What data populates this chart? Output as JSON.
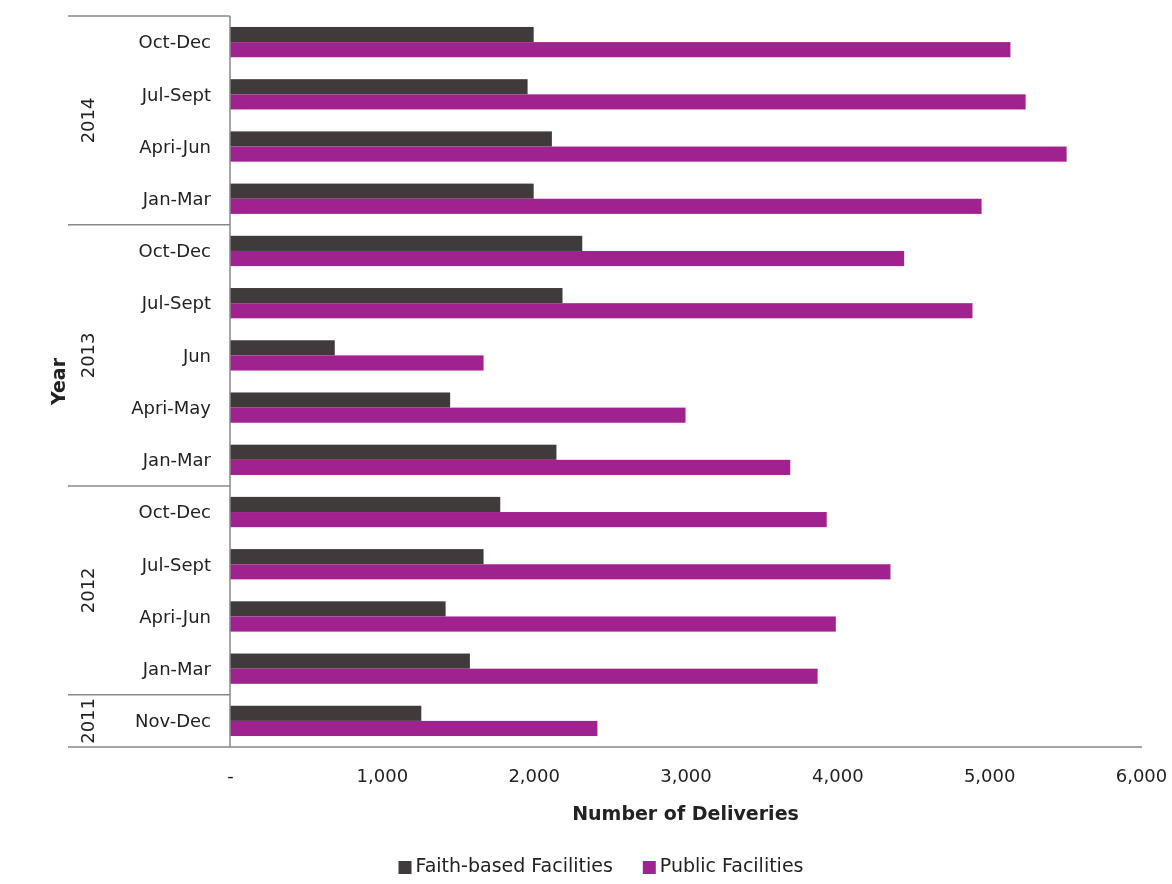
{
  "chart_data": {
    "type": "bar",
    "orientation": "horizontal",
    "xlabel": "Number of Deliveries",
    "ylabel": "Year",
    "categories": [
      "Oct-Dec",
      "Jul-Sept",
      "Apri-Jun",
      "Jan-Mar",
      "Oct-Dec",
      "Jul-Sept",
      "Jun",
      "Apri-May",
      "Jan-Mar",
      "Oct-Dec",
      "Jul-Sept",
      "Apri-Jun",
      "Jan-Mar",
      "Nov-Dec"
    ],
    "series": [
      {
        "name": "Faith-based Facilities",
        "color": "#403b3a",
        "values": [
          2000,
          1960,
          2120,
          2000,
          2320,
          2190,
          690,
          1450,
          2150,
          1780,
          1670,
          1420,
          1580,
          1260
        ]
      },
      {
        "name": "Public Facilities",
        "color": "#a0228f",
        "values": [
          5140,
          5240,
          5510,
          4950,
          4440,
          4890,
          1670,
          3000,
          3690,
          3930,
          4350,
          3990,
          3870,
          2420
        ]
      }
    ],
    "xlim": [
      0,
      6000
    ],
    "xticks": [
      {
        "value": 0,
        "label": "-"
      },
      {
        "value": 1000,
        "label": "1,000"
      },
      {
        "value": 2000,
        "label": "2,000"
      },
      {
        "value": 3000,
        "label": "3,000"
      },
      {
        "value": 4000,
        "label": "4,000"
      },
      {
        "value": 5000,
        "label": "5,000"
      },
      {
        "value": 6000,
        "label": "6,000"
      }
    ],
    "annotations": [
      "2014",
      "2013",
      "2012",
      "2011"
    ],
    "grid": false,
    "legend": "bottom"
  }
}
